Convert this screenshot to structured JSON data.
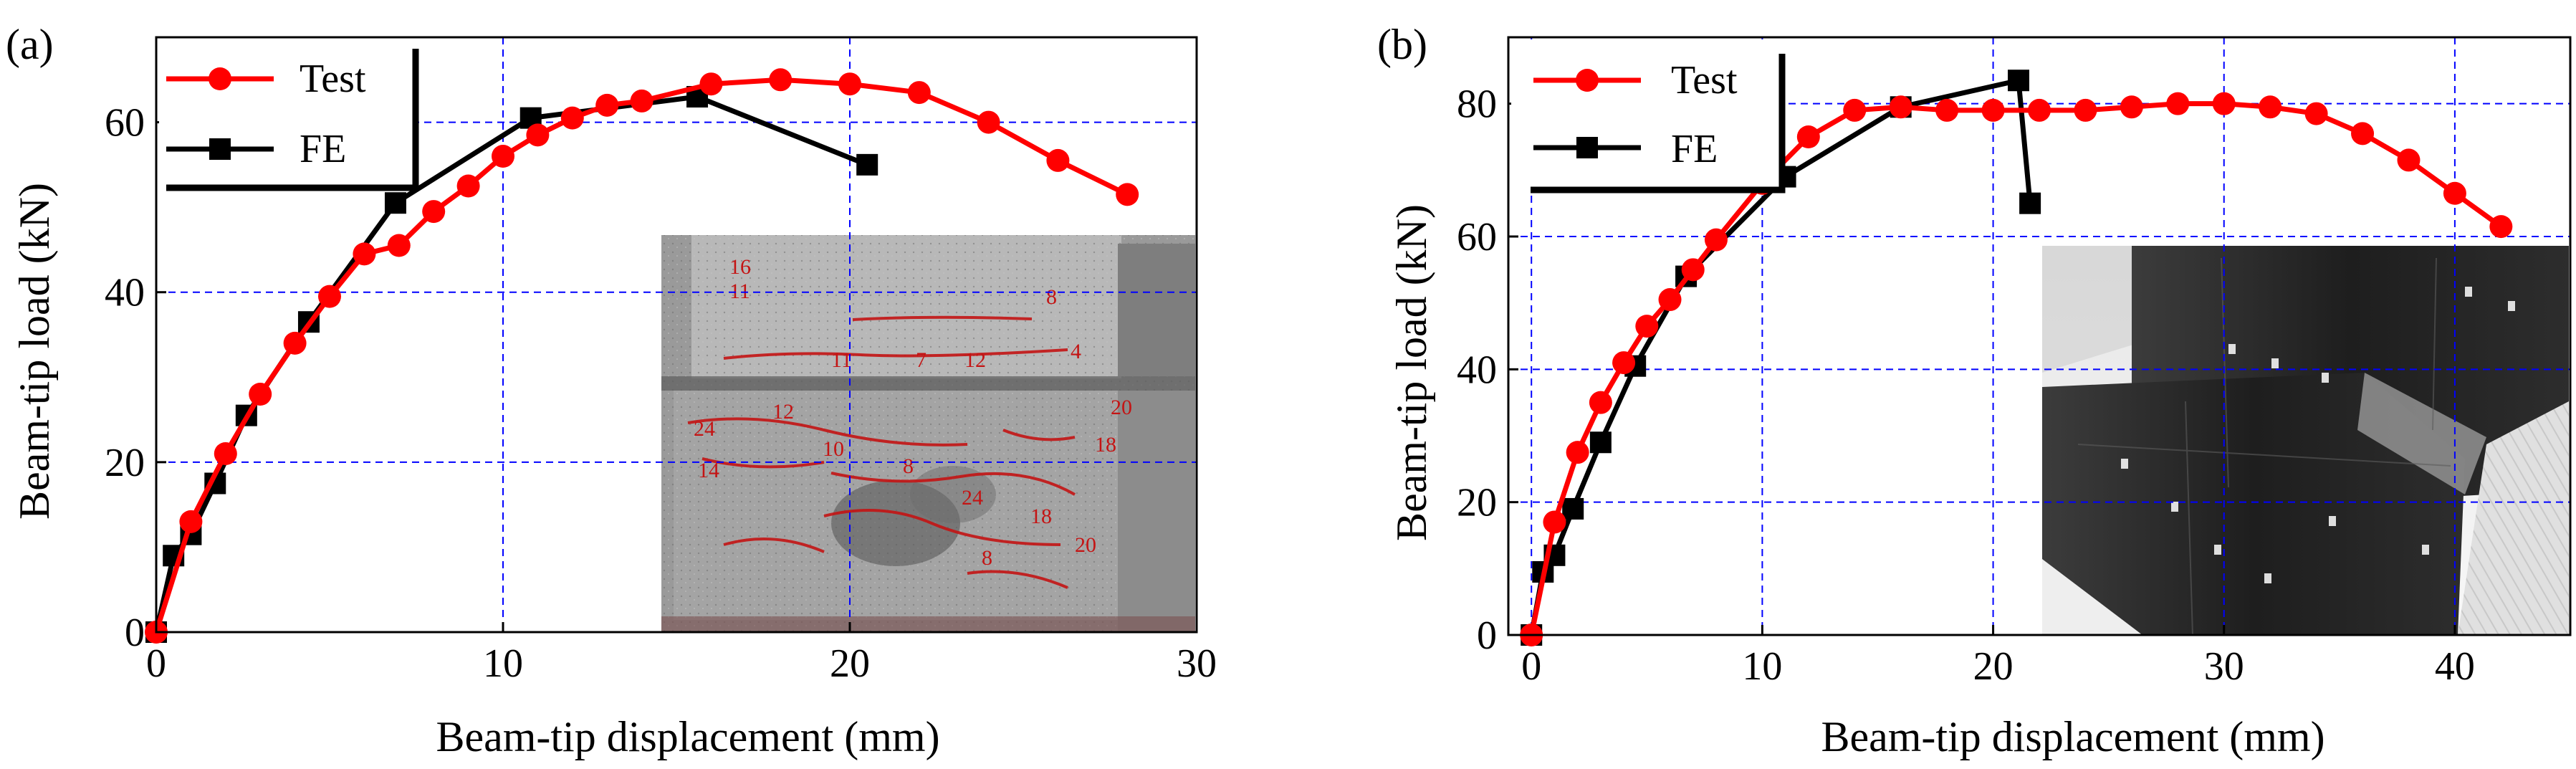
{
  "colors": {
    "test": "#ff0000",
    "fe": "#000000",
    "grid": "#0000ff",
    "axis": "#000000"
  },
  "chart_data": [
    {
      "panel_label": "(a)",
      "type": "line",
      "xlabel": "Beam-tip displacement (mm)",
      "ylabel": "Beam-tip load (kN)",
      "xlim": [
        0,
        30
      ],
      "ylim": [
        0,
        70
      ],
      "xticks": [
        0,
        10,
        20,
        30
      ],
      "yticks": [
        0,
        20,
        40,
        60
      ],
      "xtick_labels": [
        "0",
        "10",
        "20",
        "30"
      ],
      "ytick_labels": [
        "0",
        "20",
        "40",
        "60"
      ],
      "grid": true,
      "legend": {
        "position": "top-left",
        "entries": [
          "Test",
          "FE"
        ]
      },
      "inset_photo": "concrete joint specimen with red-marked crack patterns and numbers",
      "photo_marks": [
        "16",
        "11",
        "8",
        "11",
        "7",
        "12",
        "4",
        "20",
        "12",
        "24",
        "14",
        "10",
        "8",
        "18",
        "24",
        "18",
        "20",
        "8"
      ],
      "series": [
        {
          "name": "Test",
          "marker": "circle",
          "x": [
            0,
            1,
            2,
            3,
            4,
            5,
            6,
            7,
            8,
            9,
            10,
            11,
            12,
            13,
            14,
            16,
            18,
            20,
            22,
            24,
            26,
            28
          ],
          "y": [
            0,
            13,
            21,
            28,
            34,
            39.5,
            44.5,
            45.5,
            49.5,
            52.5,
            56,
            58.5,
            60.5,
            62,
            62.5,
            64.5,
            65,
            64.5,
            63.5,
            60,
            55.5,
            51.5
          ]
        },
        {
          "name": "FE",
          "marker": "square",
          "x": [
            0,
            0.5,
            1,
            1.7,
            2.6,
            4.4,
            6.9,
            10.8,
            15.6,
            20.5
          ],
          "y": [
            0,
            9,
            11.5,
            17.5,
            25.5,
            36.5,
            50.5,
            60.5,
            63,
            55
          ]
        }
      ]
    },
    {
      "panel_label": "(b)",
      "type": "line",
      "xlabel": "Beam-tip displacement (mm)",
      "ylabel": "Beam-tip load (kN)",
      "xlim": [
        -1,
        45
      ],
      "ylim": [
        0,
        90
      ],
      "xticks": [
        0,
        10,
        20,
        30,
        40
      ],
      "yticks": [
        0,
        20,
        40,
        60,
        80
      ],
      "xtick_labels": [
        "0",
        "10",
        "20",
        "30",
        "40"
      ],
      "ytick_labels": [
        "0",
        "20",
        "40",
        "60",
        "80"
      ],
      "grid": true,
      "legend": {
        "position": "top-left",
        "entries": [
          "Test",
          "FE"
        ]
      },
      "inset_photo": "joint specimen wrapped with black carbon fiber sheets",
      "series": [
        {
          "name": "Test",
          "marker": "circle",
          "x": [
            0,
            1,
            2,
            3,
            4,
            5,
            6,
            7,
            8,
            10,
            12,
            14,
            16,
            18,
            20,
            22,
            24,
            26,
            28,
            30,
            32,
            34,
            36,
            38,
            40,
            42
          ],
          "y": [
            0,
            17,
            27.5,
            35,
            41,
            46.5,
            50.5,
            55,
            59.5,
            68,
            75,
            79,
            79.5,
            79,
            79,
            79,
            79,
            79.5,
            80,
            80,
            79.5,
            78.5,
            75.5,
            71.5,
            66.5,
            61.5
          ]
        },
        {
          "name": "FE",
          "marker": "square",
          "x": [
            0,
            0.5,
            1,
            1.8,
            3,
            4.5,
            6.7,
            11,
            16,
            21.1,
            21.6
          ],
          "y": [
            0,
            9.5,
            12,
            19,
            29,
            40.5,
            54,
            69,
            79.5,
            83.5,
            65
          ]
        }
      ]
    }
  ]
}
